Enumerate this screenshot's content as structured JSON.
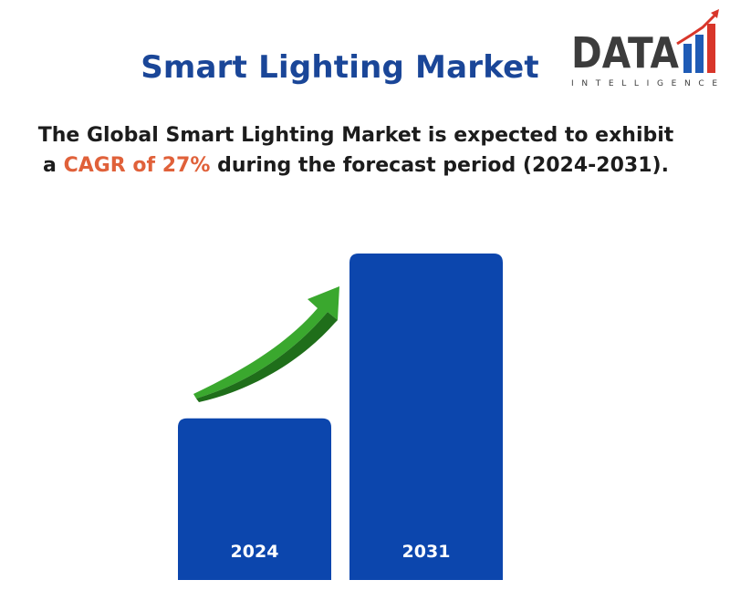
{
  "page": {
    "title": "Smart Lighting Market",
    "subtitle_part1": "The Global Smart Lighting Market is expected to exhibit a ",
    "subtitle_highlight": "CAGR of 27%",
    "subtitle_part2": " during the forecast period (2024-2031)."
  },
  "logo": {
    "word": "DATA",
    "tagline": "INTELLIGENCE"
  },
  "colors": {
    "title": "#1a4698",
    "bar": "#0c46ad",
    "highlight": "#e0613a",
    "arrow": "#3aa82e",
    "logo_dark": "#3c3c3c",
    "logo_red": "#d8362a",
    "logo_blue": "#1f5bb5"
  },
  "chart_data": {
    "type": "bar",
    "categories": [
      "2024",
      "2031"
    ],
    "values": [
      1,
      2.02
    ],
    "title": "",
    "xlabel": "",
    "ylabel": "",
    "ylim": [
      0,
      2.02
    ],
    "grid": false,
    "annotation": "growth-arrow"
  }
}
